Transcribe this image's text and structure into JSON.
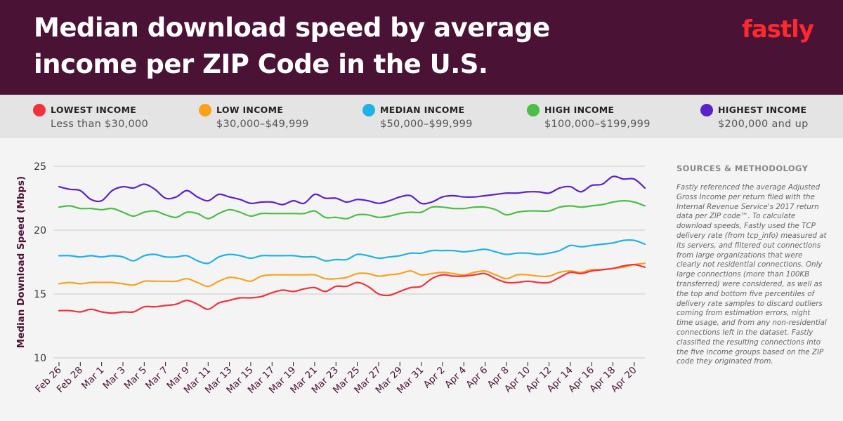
{
  "header": {
    "title": "Median download speed by average income per ZIP Code in the U.S.",
    "logo_text": "fastly",
    "background": "#4a1336",
    "logo_color": "#ff282d"
  },
  "legend": [
    {
      "name": "LOWEST INCOME",
      "range": "Less than $30,000",
      "color": "#f0323c"
    },
    {
      "name": "LOW INCOME",
      "range": "$30,000–$49,999",
      "color": "#f8a21c"
    },
    {
      "name": "MEDIAN INCOME",
      "range": "$50,000–$99,999",
      "color": "#1eb2e6"
    },
    {
      "name": "HIGH INCOME",
      "range": "$100,000–$199,999",
      "color": "#4cbd48"
    },
    {
      "name": "HIGHEST INCOME",
      "range": "$200,000 and up",
      "color": "#5b22c9"
    }
  ],
  "sidebar": {
    "title": "SOURCES & METHODOLOGY",
    "text": "Fastly referenced the average Adjusted Gross Income per return filed with the Internal Revenue Service's 2017 return data per ZIP code™. To calculate download speeds, Fastly used the TCP delivery rate (from tcp_info) measured at its servers, and filtered out connections from large organizations that were clearly not residential connections. Only large connections (more than 100KB transferred) were considered, as well as the top and bottom five percentiles of delivery rate samples to discard outliers coming from estimation errors, night time usage, and from any non-residential connections left in the dataset. Fastly classified the resulting connections into the five income groups based on the ZIP code they originated from."
  },
  "chart_data": {
    "type": "line",
    "title": "Median download speed by average income per ZIP Code in the U.S.",
    "ylabel": "Median Download Speed (Mbps)",
    "xlabel": "",
    "ylim": [
      10,
      25
    ],
    "yticks": [
      10,
      15,
      20,
      25
    ],
    "grid": true,
    "xtick_labels": [
      "Feb 26",
      "Feb 28",
      "Mar 1",
      "Mar 3",
      "Mar 5",
      "Mar 7",
      "Mar 9",
      "Mar 11",
      "Mar 13",
      "Mar 15",
      "Mar 17",
      "Mar 19",
      "Mar 21",
      "Mar 23",
      "Mar 25",
      "Mar 27",
      "Mar 29",
      "Mar 31",
      "Apr 2",
      "Apr 4",
      "Apr 6",
      "Apr 8",
      "Apr 10",
      "Apr 12",
      "Apr 14",
      "Apr 16",
      "Apr 18",
      "Apr 20"
    ],
    "x": [
      "Feb 26",
      "Feb 27",
      "Feb 28",
      "Feb 29",
      "Mar 1",
      "Mar 2",
      "Mar 3",
      "Mar 4",
      "Mar 5",
      "Mar 6",
      "Mar 7",
      "Mar 8",
      "Mar 9",
      "Mar 10",
      "Mar 11",
      "Mar 12",
      "Mar 13",
      "Mar 14",
      "Mar 15",
      "Mar 16",
      "Mar 17",
      "Mar 18",
      "Mar 19",
      "Mar 20",
      "Mar 21",
      "Mar 22",
      "Mar 23",
      "Mar 24",
      "Mar 25",
      "Mar 26",
      "Mar 27",
      "Mar 28",
      "Mar 29",
      "Mar 30",
      "Mar 31",
      "Apr 1",
      "Apr 2",
      "Apr 3",
      "Apr 4",
      "Apr 5",
      "Apr 6",
      "Apr 7",
      "Apr 8",
      "Apr 9",
      "Apr 10",
      "Apr 11",
      "Apr 12",
      "Apr 13",
      "Apr 14",
      "Apr 15",
      "Apr 16",
      "Apr 17",
      "Apr 18",
      "Apr 19",
      "Apr 20",
      "Apr 21"
    ],
    "series": [
      {
        "name": "HIGHEST INCOME",
        "color": "#5b22c9",
        "values": [
          23.4,
          23.2,
          23.1,
          22.4,
          22.3,
          23.1,
          23.4,
          23.3,
          23.6,
          23.2,
          22.5,
          22.6,
          23.1,
          22.6,
          22.3,
          22.8,
          22.6,
          22.4,
          22.1,
          22.2,
          22.2,
          22.0,
          22.3,
          22.1,
          22.8,
          22.5,
          22.5,
          22.2,
          22.4,
          22.3,
          22.1,
          22.3,
          22.6,
          22.7,
          22.1,
          22.2,
          22.6,
          22.7,
          22.6,
          22.6,
          22.7,
          22.8,
          22.9,
          22.9,
          23.0,
          23.0,
          22.9,
          23.3,
          23.4,
          23.0,
          23.5,
          23.6,
          24.2,
          24.0,
          24.0,
          23.3
        ]
      },
      {
        "name": "HIGH INCOME",
        "color": "#4cbd48",
        "values": [
          21.8,
          21.9,
          21.7,
          21.7,
          21.6,
          21.7,
          21.4,
          21.1,
          21.4,
          21.5,
          21.2,
          21.0,
          21.4,
          21.3,
          20.9,
          21.3,
          21.6,
          21.4,
          21.1,
          21.3,
          21.3,
          21.3,
          21.3,
          21.3,
          21.5,
          21.0,
          21.0,
          20.9,
          21.2,
          21.2,
          21.0,
          21.1,
          21.3,
          21.4,
          21.4,
          21.8,
          21.8,
          21.7,
          21.7,
          21.8,
          21.8,
          21.6,
          21.2,
          21.4,
          21.5,
          21.5,
          21.5,
          21.8,
          21.9,
          21.8,
          21.9,
          22.0,
          22.2,
          22.3,
          22.2,
          21.9
        ]
      },
      {
        "name": "MEDIAN INCOME",
        "color": "#1eb2e6",
        "values": [
          18.0,
          18.0,
          17.9,
          18.0,
          17.9,
          18.0,
          17.9,
          17.6,
          18.0,
          18.1,
          17.9,
          17.9,
          18.0,
          17.6,
          17.4,
          17.9,
          18.1,
          18.0,
          17.8,
          18.0,
          18.0,
          18.0,
          18.0,
          17.9,
          17.9,
          17.6,
          17.7,
          17.7,
          18.1,
          18.0,
          17.8,
          17.9,
          18.0,
          18.2,
          18.2,
          18.4,
          18.4,
          18.4,
          18.3,
          18.4,
          18.5,
          18.3,
          18.1,
          18.2,
          18.2,
          18.1,
          18.2,
          18.4,
          18.8,
          18.7,
          18.8,
          18.9,
          19.0,
          19.2,
          19.2,
          18.9
        ]
      },
      {
        "name": "LOW INCOME",
        "color": "#f8a21c",
        "values": [
          15.8,
          15.9,
          15.8,
          15.9,
          15.9,
          15.9,
          15.8,
          15.7,
          16.0,
          16.0,
          16.0,
          16.0,
          16.2,
          15.9,
          15.6,
          16.0,
          16.3,
          16.2,
          16.0,
          16.4,
          16.5,
          16.5,
          16.5,
          16.5,
          16.5,
          16.2,
          16.2,
          16.3,
          16.6,
          16.6,
          16.4,
          16.5,
          16.6,
          16.8,
          16.5,
          16.6,
          16.7,
          16.6,
          16.5,
          16.7,
          16.8,
          16.5,
          16.2,
          16.5,
          16.5,
          16.4,
          16.4,
          16.7,
          16.8,
          16.7,
          16.9,
          16.9,
          17.0,
          17.1,
          17.3,
          17.4
        ]
      },
      {
        "name": "LOWEST INCOME",
        "color": "#f0323c",
        "values": [
          13.7,
          13.7,
          13.6,
          13.8,
          13.6,
          13.5,
          13.6,
          13.6,
          14.0,
          14.0,
          14.1,
          14.2,
          14.5,
          14.2,
          13.8,
          14.3,
          14.5,
          14.7,
          14.7,
          14.8,
          15.1,
          15.3,
          15.2,
          15.4,
          15.5,
          15.2,
          15.6,
          15.6,
          15.9,
          15.6,
          15.0,
          14.9,
          15.2,
          15.5,
          15.6,
          16.2,
          16.5,
          16.4,
          16.4,
          16.5,
          16.6,
          16.2,
          15.9,
          15.9,
          16.0,
          15.9,
          15.9,
          16.3,
          16.7,
          16.6,
          16.8,
          16.9,
          17.0,
          17.2,
          17.3,
          17.1
        ]
      }
    ]
  }
}
